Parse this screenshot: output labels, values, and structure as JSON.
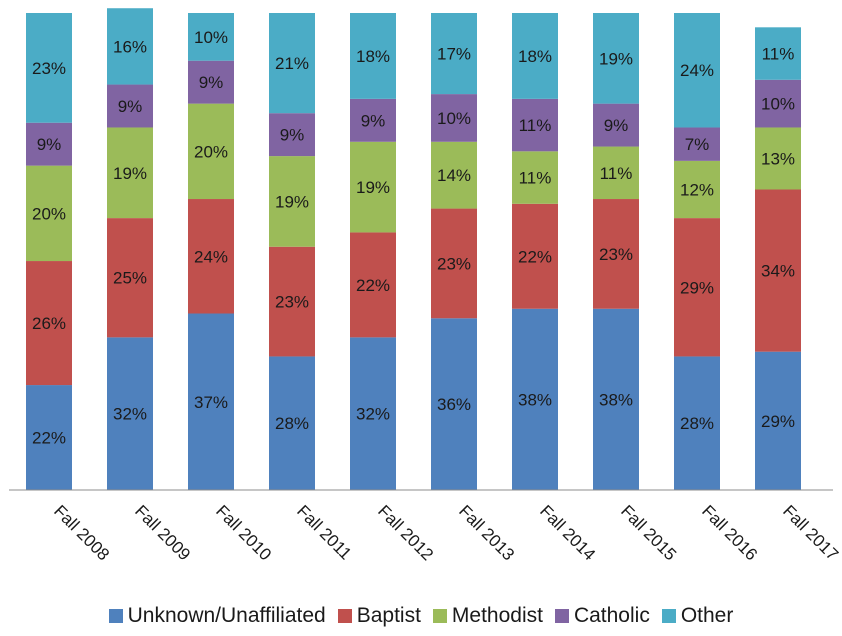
{
  "chart_data": {
    "type": "bar",
    "stacked": true,
    "categories": [
      "Fall 2008",
      "Fall 2009",
      "Fall 2010",
      "Fall 2011",
      "Fall 2012",
      "Fall 2013",
      "Fall 2014",
      "Fall 2015",
      "Fall 2016",
      "Fall 2017"
    ],
    "series": [
      {
        "name": "Unknown/Unaffiliated",
        "color": "#4f81bd",
        "values": [
          22,
          32,
          37,
          28,
          32,
          36,
          38,
          38,
          28,
          29
        ],
        "labels": [
          "22%",
          "32%",
          "37%",
          "28%",
          "32%",
          "36%",
          "38%",
          "38%",
          "28%",
          "29%"
        ]
      },
      {
        "name": "Baptist",
        "color": "#c0504d",
        "values": [
          26,
          25,
          24,
          23,
          22,
          23,
          22,
          23,
          29,
          34
        ],
        "labels": [
          "26%",
          "25%",
          "24%",
          "23%",
          "22%",
          "23%",
          "22%",
          "23%",
          "29%",
          "34%"
        ]
      },
      {
        "name": "Methodist",
        "color": "#9bbb59",
        "values": [
          20,
          19,
          20,
          19,
          19,
          14,
          11,
          11,
          12,
          13
        ],
        "labels": [
          "20%",
          "19%",
          "20%",
          "19%",
          "19%",
          "14%",
          "11%",
          "11%",
          "12%",
          "13%"
        ]
      },
      {
        "name": "Catholic",
        "color": "#8064a2",
        "values": [
          9,
          9,
          9,
          9,
          9,
          10,
          11,
          9,
          7,
          10
        ],
        "labels": [
          "9%",
          "9%",
          "9%",
          "9%",
          "9%",
          "10%",
          "11%",
          "9%",
          "7%",
          "10%"
        ]
      },
      {
        "name": "Other",
        "color": "#4bacc6",
        "values": [
          23,
          16,
          10,
          21,
          18,
          17,
          18,
          19,
          24,
          11
        ],
        "labels": [
          "23%",
          "16%",
          "10%",
          "21%",
          "18%",
          "17%",
          "18%",
          "19%",
          "24%",
          "11%"
        ]
      }
    ],
    "ylim": [
      0,
      100
    ],
    "title": "",
    "xlabel": "",
    "ylabel": "",
    "grid": false,
    "legend_position": "bottom"
  }
}
